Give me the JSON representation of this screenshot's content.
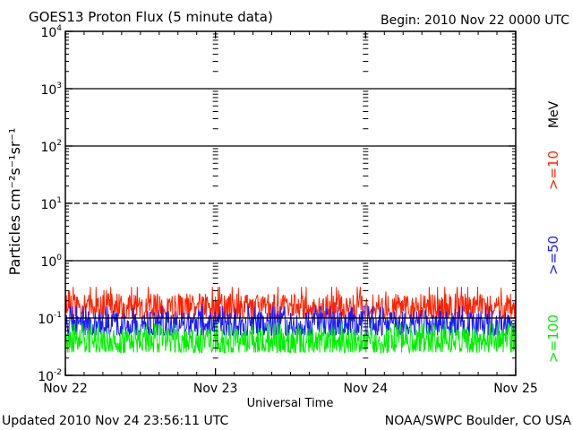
{
  "chart_data": {
    "type": "line",
    "title": "GOES13 Proton Flux (5 minute data)",
    "begin_label": "Begin: 2010 Nov 22 0000 UTC",
    "xlabel": "Universal Time",
    "ylabel": "Particles cm⁻²s⁻¹sr⁻¹",
    "y_scale": "log",
    "ylim": [
      0.01,
      10000
    ],
    "y_ticks": [
      {
        "base": "10",
        "exp": "-2",
        "value": 0.01
      },
      {
        "base": "10",
        "exp": "-1",
        "value": 0.1
      },
      {
        "base": "10",
        "exp": "0",
        "value": 1
      },
      {
        "base": "10",
        "exp": "1",
        "value": 10
      },
      {
        "base": "10",
        "exp": "2",
        "value": 100
      },
      {
        "base": "10",
        "exp": "3",
        "value": 1000
      },
      {
        "base": "10",
        "exp": "4",
        "value": 10000
      }
    ],
    "x_ticks": [
      "Nov 22",
      "Nov 23",
      "Nov 24",
      "Nov 25"
    ],
    "xlim": [
      "2010-11-22 00:00",
      "2010-11-25 00:00"
    ],
    "thresholds": [
      {
        "value": 1000,
        "style": "solid"
      },
      {
        "value": 100,
        "style": "solid"
      },
      {
        "value": 10,
        "style": "dashed"
      },
      {
        "value": 1,
        "style": "solid"
      },
      {
        "value": 0.1,
        "style": "solid"
      }
    ],
    "series": [
      {
        "name": ">=10",
        "color": "#ff2200",
        "base": 0.15,
        "spread": 0.25,
        "values_range": [
          0.1,
          0.35
        ]
      },
      {
        "name": ">=50",
        "color": "#1a1aff",
        "base": 0.075,
        "spread": 0.25,
        "values_range": [
          0.05,
          0.16
        ]
      },
      {
        "name": ">=100",
        "color": "#00ee00",
        "base": 0.038,
        "spread": 0.25,
        "values_range": [
          0.025,
          0.08
        ]
      }
    ],
    "unit": "MeV",
    "grid": false,
    "legend_placement": "right"
  },
  "footer": {
    "updated": "Updated 2010 Nov 24 23:56:11 UTC",
    "credit": "NOAA/SWPC Boulder, CO USA"
  }
}
